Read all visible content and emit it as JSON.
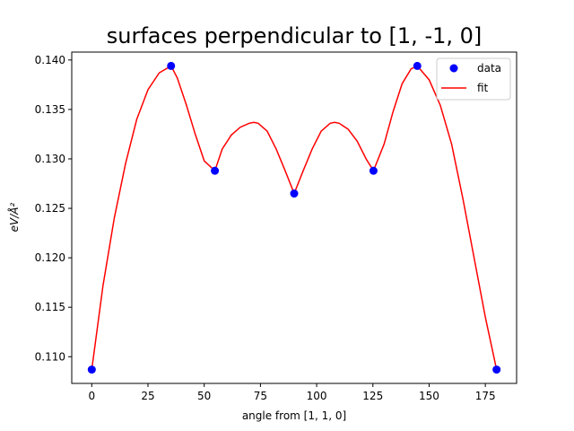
{
  "chart_data": {
    "type": "line",
    "title": "surfaces perpendicular to [1, -1, 0]",
    "xlabel": "angle from [1, 1, 0]",
    "ylabel": "eV/Å²",
    "xlim": [
      -8.9,
      188.9
    ],
    "ylim": [
      0.1073,
      0.1408
    ],
    "xticks": [
      0,
      25,
      50,
      75,
      100,
      125,
      150,
      175
    ],
    "yticks": [
      0.11,
      0.115,
      0.12,
      0.125,
      0.13,
      0.135,
      0.14
    ],
    "ytick_labels": [
      "0.110",
      "0.115",
      "0.120",
      "0.125",
      "0.130",
      "0.135",
      "0.140"
    ],
    "grid": false,
    "legend_position": "top-right",
    "series": [
      {
        "name": "data",
        "kind": "scatter",
        "color": "#0000ff",
        "x": [
          0,
          35.26,
          54.74,
          90,
          125.26,
          144.74,
          180
        ],
        "y": [
          0.1087,
          0.1394,
          0.1288,
          0.1265,
          0.1288,
          0.1394,
          0.1087
        ]
      },
      {
        "name": "fit",
        "kind": "line",
        "color": "#ff0000",
        "x": [
          0,
          5,
          10,
          15,
          20,
          25,
          30,
          35.26,
          38,
          42,
          46,
          50,
          54.74,
          58,
          62,
          66,
          70,
          72,
          74,
          78,
          82,
          86,
          90,
          94,
          98,
          102,
          106,
          108,
          110,
          114,
          118,
          122,
          125.26,
          130,
          134,
          138,
          142,
          144.74,
          150,
          155,
          160,
          165,
          170,
          175,
          180
        ],
        "y": [
          0.1087,
          0.1172,
          0.124,
          0.1295,
          0.134,
          0.137,
          0.1387,
          0.1394,
          0.1382,
          0.1355,
          0.1325,
          0.1298,
          0.1288,
          0.131,
          0.1324,
          0.1332,
          0.1336,
          0.1337,
          0.1336,
          0.1328,
          0.131,
          0.1288,
          0.1265,
          0.1288,
          0.131,
          0.1328,
          0.1336,
          0.1337,
          0.1336,
          0.133,
          0.1318,
          0.13,
          0.1288,
          0.1315,
          0.1348,
          0.1376,
          0.1391,
          0.1394,
          0.138,
          0.1354,
          0.1315,
          0.126,
          0.12,
          0.114,
          0.1087
        ]
      }
    ]
  }
}
